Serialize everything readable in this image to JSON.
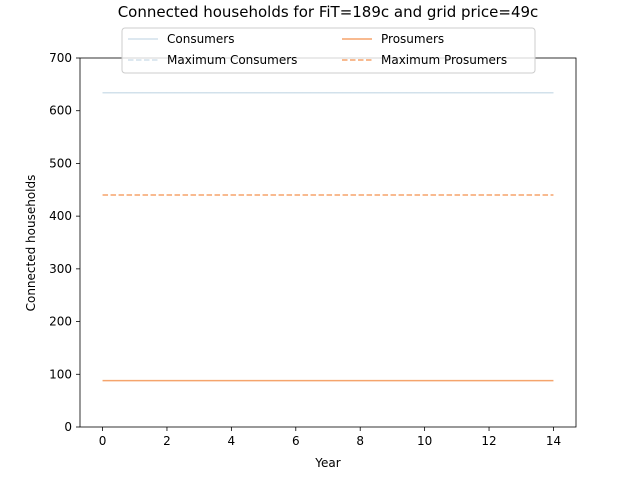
{
  "chart_data": {
    "type": "line",
    "title": "Connected households for FiT=189c and grid price=49c",
    "xlabel": "Year",
    "ylabel": "Connected households",
    "xlim": [
      -0.7,
      14.7
    ],
    "ylim": [
      0,
      700
    ],
    "xticks": [
      0,
      2,
      4,
      6,
      8,
      10,
      12,
      14
    ],
    "yticks": [
      0,
      100,
      200,
      300,
      400,
      500,
      600,
      700
    ],
    "legend_position": "top-center",
    "x": [
      0,
      1,
      2,
      3,
      4,
      5,
      6,
      7,
      8,
      9,
      10,
      11,
      12,
      13,
      14
    ],
    "series": [
      {
        "name": "Consumers",
        "color": "#d2e1eb",
        "style": "solid",
        "values": [
          634,
          634,
          634,
          634,
          634,
          634,
          634,
          634,
          634,
          634,
          634,
          634,
          634,
          634,
          634
        ]
      },
      {
        "name": "Maximum Consumers",
        "color": "#d2e1eb",
        "style": "dashed",
        "values": [
          634,
          634,
          634,
          634,
          634,
          634,
          634,
          634,
          634,
          634,
          634,
          634,
          634,
          634,
          634
        ]
      },
      {
        "name": "Prosumers",
        "color": "#f5a46c",
        "style": "solid",
        "values": [
          88,
          88,
          88,
          88,
          88,
          88,
          88,
          88,
          88,
          88,
          88,
          88,
          88,
          88,
          88
        ]
      },
      {
        "name": "Maximum Prosumers",
        "color": "#f5a46c",
        "style": "dashed",
        "values": [
          440,
          440,
          440,
          440,
          440,
          440,
          440,
          440,
          440,
          440,
          440,
          440,
          440,
          440,
          440
        ]
      }
    ]
  }
}
